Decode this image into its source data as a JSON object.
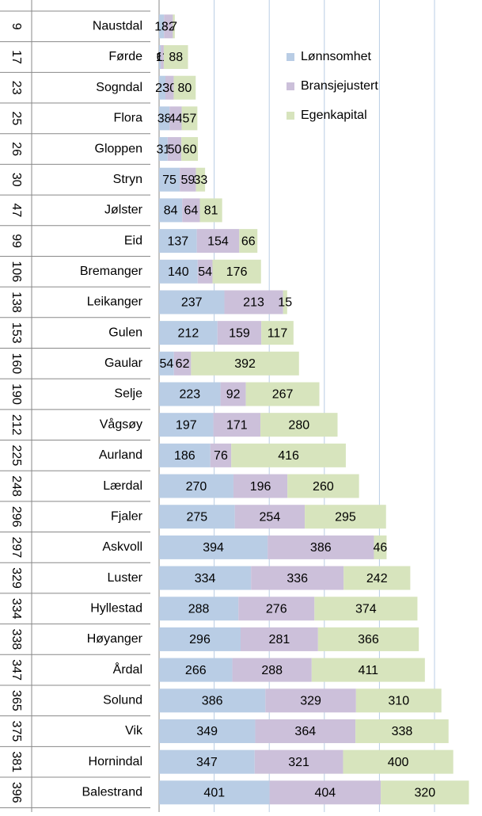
{
  "chart_data": {
    "type": "stacked_barh",
    "categories": [
      "Naustdal",
      "Førde",
      "Sogndal",
      "Flora",
      "Gloppen",
      "Stryn",
      "Jølster",
      "Eid",
      "Bremanger",
      "Leikanger",
      "Gulen",
      "Gaular",
      "Selje",
      "Vågsøy",
      "Aurland",
      "Lærdal",
      "Fjaler",
      "Askvoll",
      "Luster",
      "Hyllestad",
      "Høyanger",
      "Årdal",
      "Solund",
      "Vik",
      "Hornindal",
      "Balestrand"
    ],
    "ranks": [
      9,
      17,
      23,
      25,
      26,
      30,
      47,
      99,
      106,
      138,
      153,
      160,
      190,
      212,
      225,
      248,
      296,
      297,
      329,
      334,
      338,
      347,
      365,
      375,
      381,
      396
    ],
    "series": [
      {
        "name": "Lønnsomhet",
        "color": "#b9cde5",
        "values": [
          18,
          6,
          23,
          38,
          31,
          75,
          84,
          137,
          140,
          237,
          212,
          54,
          223,
          197,
          186,
          270,
          275,
          394,
          334,
          288,
          296,
          266,
          386,
          349,
          347,
          401
        ]
      },
      {
        "name": "Bransjejustert",
        "color": "#ccc0da",
        "values": [
          32,
          11,
          30,
          44,
          50,
          59,
          64,
          154,
          54,
          213,
          159,
          62,
          92,
          171,
          76,
          196,
          254,
          386,
          336,
          276,
          281,
          288,
          329,
          364,
          321,
          404
        ]
      },
      {
        "name": "Egenkapital",
        "color": "#d7e4bd",
        "values": [
          7,
          88,
          80,
          57,
          60,
          33,
          81,
          66,
          176,
          15,
          117,
          392,
          267,
          280,
          416,
          260,
          295,
          46,
          242,
          374,
          366,
          411,
          310,
          338,
          400,
          320
        ]
      }
    ],
    "xlim": [
      0,
      1170
    ],
    "xticks": [
      0,
      200,
      400,
      600,
      800,
      1000
    ],
    "grid": true
  }
}
